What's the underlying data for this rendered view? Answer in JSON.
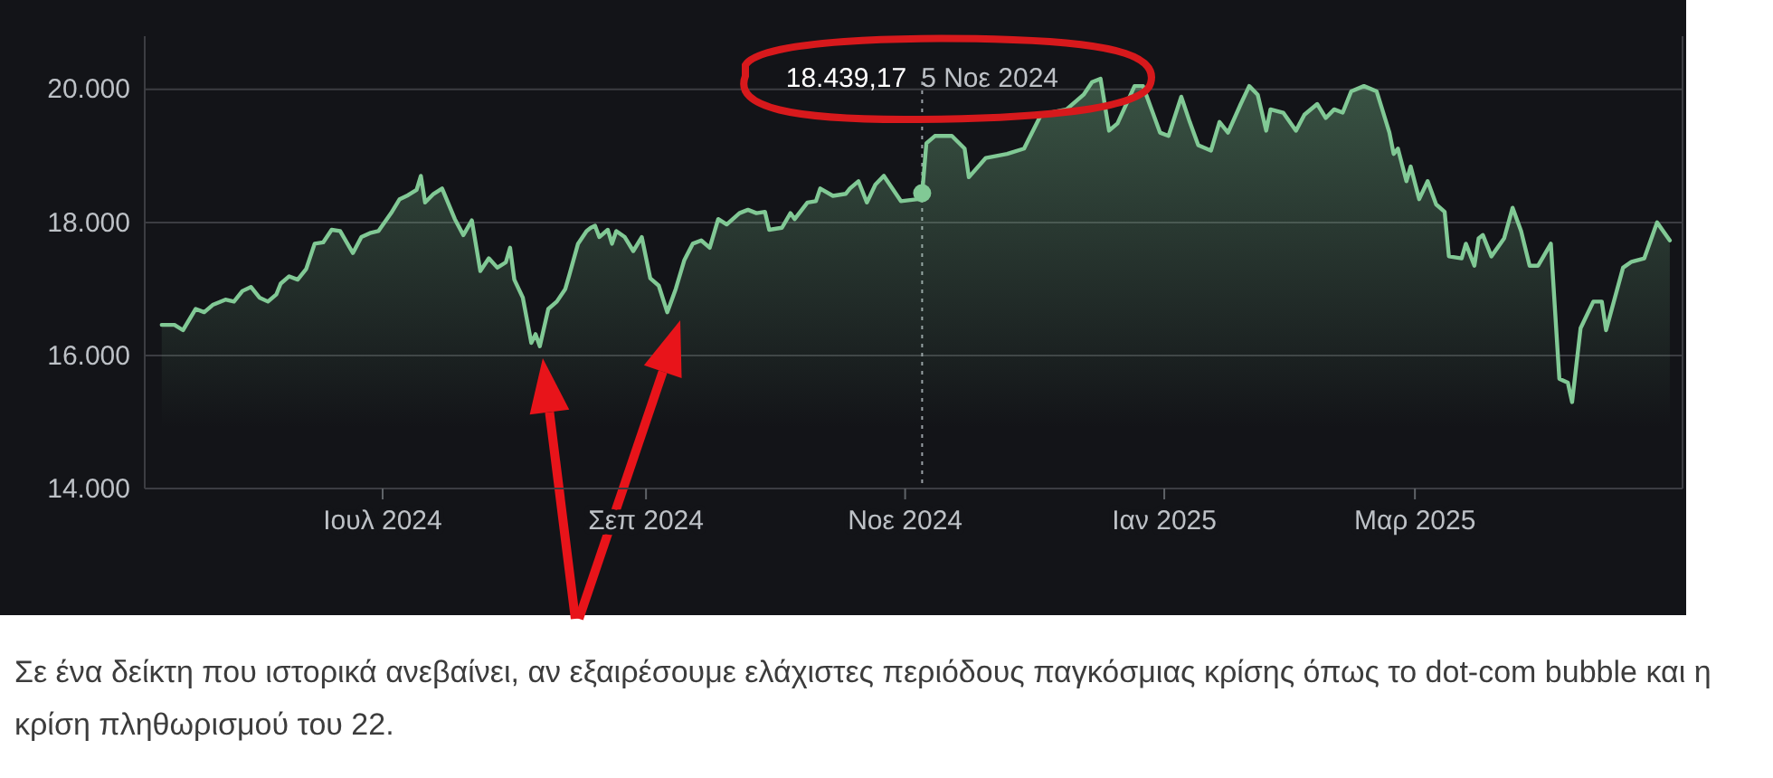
{
  "chart_data": {
    "type": "area",
    "x": [
      "2024-05-10",
      "2024-05-13",
      "2024-05-15",
      "2024-05-18",
      "2024-05-20",
      "2024-05-22",
      "2024-05-25",
      "2024-05-27",
      "2024-05-29",
      "2024-05-31",
      "2024-06-02",
      "2024-06-04",
      "2024-06-06",
      "2024-06-07",
      "2024-06-09",
      "2024-06-11",
      "2024-06-13",
      "2024-06-15",
      "2024-06-17",
      "2024-06-19",
      "2024-06-21",
      "2024-06-23",
      "2024-06-24",
      "2024-06-26",
      "2024-06-28",
      "2024-06-30",
      "2024-07-03",
      "2024-07-05",
      "2024-07-07",
      "2024-07-09",
      "2024-07-10",
      "2024-07-11",
      "2024-07-13",
      "2024-07-15",
      "2024-07-18",
      "2024-07-20",
      "2024-07-22",
      "2024-07-24",
      "2024-07-26",
      "2024-07-28",
      "2024-07-30",
      "2024-07-31",
      "2024-08-01",
      "2024-08-03",
      "2024-08-05",
      "2024-08-06",
      "2024-08-07",
      "2024-08-09",
      "2024-08-11",
      "2024-08-13",
      "2024-08-14",
      "2024-08-16",
      "2024-08-18",
      "2024-08-19",
      "2024-08-20",
      "2024-08-21",
      "2024-08-23",
      "2024-08-24",
      "2024-08-25",
      "2024-08-27",
      "2024-08-29",
      "2024-08-31",
      "2024-09-02",
      "2024-09-04",
      "2024-09-06",
      "2024-09-08",
      "2024-09-10",
      "2024-09-12",
      "2024-09-14",
      "2024-09-16",
      "2024-09-18",
      "2024-09-20",
      "2024-09-23",
      "2024-09-25",
      "2024-09-27",
      "2024-09-29",
      "2024-09-30",
      "2024-10-03",
      "2024-10-05",
      "2024-10-06",
      "2024-10-09",
      "2024-10-11",
      "2024-10-12",
      "2024-10-15",
      "2024-10-18",
      "2024-10-19",
      "2024-10-21",
      "2024-10-23",
      "2024-10-25",
      "2024-10-27",
      "2024-10-31",
      "2024-11-04",
      "2024-11-05",
      "2024-11-06",
      "2024-11-08",
      "2024-11-12",
      "2024-11-15",
      "2024-11-16",
      "2024-11-20",
      "2024-11-25",
      "2024-11-29",
      "2024-11-30",
      "2024-12-03",
      "2024-12-09",
      "2024-12-13",
      "2024-12-15",
      "2024-12-17",
      "2024-12-19",
      "2024-12-21",
      "2024-12-25",
      "2024-12-27",
      "2024-12-31",
      "2025-01-02",
      "2025-01-05",
      "2025-01-07",
      "2025-01-09",
      "2025-01-12",
      "2025-01-14",
      "2025-01-16",
      "2025-01-19",
      "2025-01-21",
      "2025-01-23",
      "2025-01-25",
      "2025-01-26",
      "2025-01-29",
      "2025-02-01",
      "2025-02-03",
      "2025-02-06",
      "2025-02-08",
      "2025-02-10",
      "2025-02-12",
      "2025-02-14",
      "2025-02-17",
      "2025-02-20",
      "2025-02-23",
      "2025-02-24",
      "2025-02-25",
      "2025-02-27",
      "2025-02-28",
      "2025-03-02",
      "2025-03-04",
      "2025-03-06",
      "2025-03-08",
      "2025-03-09",
      "2025-03-12",
      "2025-03-13",
      "2025-03-15",
      "2025-03-16",
      "2025-03-17",
      "2025-03-19",
      "2025-03-22",
      "2025-03-24",
      "2025-03-26",
      "2025-03-28",
      "2025-03-30",
      "2025-04-02",
      "2025-04-04",
      "2025-04-06",
      "2025-04-07",
      "2025-04-09",
      "2025-04-12",
      "2025-04-14",
      "2025-04-15",
      "2025-04-19",
      "2025-04-21",
      "2025-04-24",
      "2025-04-27",
      "2025-04-30"
    ],
    "series": [
      {
        "color": "#81c995",
        "values": [
          16460,
          16460,
          16380,
          16700,
          16650,
          16760,
          16840,
          16810,
          16970,
          17030,
          16870,
          16810,
          16920,
          17080,
          17190,
          17140,
          17300,
          17680,
          17700,
          17890,
          17870,
          17650,
          17540,
          17780,
          17840,
          17870,
          18140,
          18350,
          18410,
          18490,
          18700,
          18300,
          18430,
          18510,
          18050,
          17810,
          18030,
          17270,
          17460,
          17320,
          17400,
          17620,
          17140,
          16870,
          16190,
          16320,
          16140,
          16700,
          16810,
          17000,
          17220,
          17680,
          17870,
          17920,
          17950,
          17780,
          17890,
          17680,
          17870,
          17780,
          17570,
          17780,
          17160,
          17050,
          16650,
          17000,
          17430,
          17680,
          17730,
          17620,
          18050,
          17970,
          18140,
          18190,
          18140,
          18160,
          17890,
          17920,
          18140,
          18050,
          18300,
          18320,
          18510,
          18400,
          18430,
          18510,
          18620,
          18300,
          18570,
          18700,
          18320,
          18350,
          18430,
          19190,
          19300,
          19300,
          19110,
          18680,
          18970,
          19030,
          19110,
          19240,
          19620,
          19700,
          19920,
          20110,
          20160,
          19380,
          19490,
          20050,
          20050,
          19350,
          19300,
          19890,
          19510,
          19160,
          19080,
          19510,
          19350,
          19780,
          20050,
          19920,
          19380,
          19700,
          19650,
          19380,
          19620,
          19780,
          19570,
          19700,
          19650,
          19970,
          20050,
          19970,
          19350,
          19030,
          19110,
          18620,
          18840,
          18350,
          18620,
          18270,
          18160,
          17490,
          17460,
          17680,
          17350,
          17760,
          17810,
          17490,
          17760,
          18220,
          17870,
          17350,
          17350,
          17680,
          15650,
          15590,
          15300,
          16410,
          16810,
          16810,
          16380,
          17320,
          17410,
          17460,
          18000,
          17730
        ]
      },
      {
        "type": "scatter",
        "x": [
          "2024-11-05"
        ],
        "values": [
          18440
        ],
        "color": "#81c995"
      }
    ],
    "xlim": [
      "2024-05-06",
      "2025-05-03"
    ],
    "xticks": [
      {
        "value": "2024-07-01",
        "label": "Ιουλ 2024"
      },
      {
        "value": "2024-09-01",
        "label": "Σεπ 2024"
      },
      {
        "value": "2024-11-01",
        "label": "Νοε 2024"
      },
      {
        "value": "2025-01-01",
        "label": "Ιαν 2025"
      },
      {
        "value": "2025-03-01",
        "label": "Μαρ 2025"
      }
    ],
    "ylim": [
      14000,
      20800
    ],
    "yticks": [
      {
        "value": 14000,
        "label": "14.000"
      },
      {
        "value": 16000,
        "label": "16.000"
      },
      {
        "value": 18000,
        "label": "18.000"
      },
      {
        "value": 20000,
        "label": "20.000"
      }
    ],
    "grid": "y",
    "ref_lines": [
      {
        "axis": "x",
        "value": "2024-11-05",
        "color": "#9aa0a6",
        "line_style": "dotted"
      }
    ],
    "annotations": [
      "18.439,17 5 Νοε 2024",
      "Σε ένα δείκτη που ιστορικά ανεβαίνει, αν εξαιρέσουμε ελάχιστες περιόδους παγκόσμιας κρίσης όπως το dot-com bubble και η κρίση πληθωρισμού του 22."
    ]
  }
}
